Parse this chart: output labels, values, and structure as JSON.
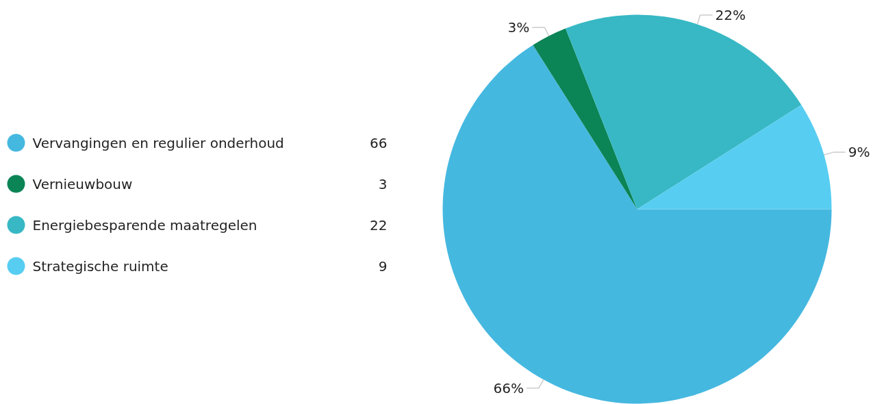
{
  "chart_data": {
    "type": "pie",
    "categories": [
      "Vervangingen en regulier onderhoud",
      "Vernieuwbouw",
      "Energiebesparende maatregelen",
      "Strategische ruimte"
    ],
    "values": [
      66,
      3,
      22,
      9
    ],
    "colors": [
      "#45b8e0",
      "#0b8456",
      "#37b8c4",
      "#58cdf2"
    ],
    "value_labels": [
      "66%",
      "3%",
      "22%",
      "9%"
    ],
    "annotations": [
      "66",
      "3",
      "22",
      "9"
    ],
    "legend": "left"
  }
}
